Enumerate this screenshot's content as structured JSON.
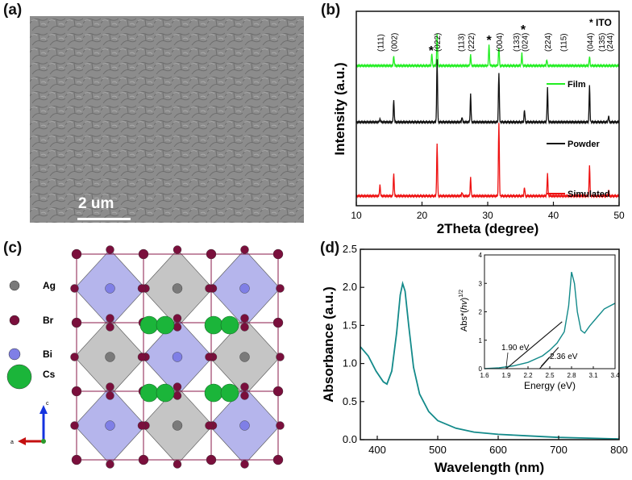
{
  "panel_labels": {
    "a": "(a)",
    "b": "(b)",
    "c": "(c)",
    "d": "(d)"
  },
  "sem": {
    "scale_label": "2 um"
  },
  "colors": {
    "film": "#22ee22",
    "powder": "#111111",
    "simulated": "#ee1111",
    "absorbance": "#138a8a"
  },
  "chart_data": [
    {
      "type": "line",
      "title": "",
      "xlabel": "2Theta (degree)",
      "ylabel": "Intensity (a.u.)",
      "xlim": [
        10,
        50
      ],
      "xticks": [
        10,
        20,
        30,
        40,
        50
      ],
      "legend_ito": "* ITO",
      "series": [
        {
          "name": "Film",
          "offset": 0.72,
          "scale": 0.16,
          "peaks": [
            [
              15.7,
              0.3
            ],
            [
              21.5,
              0.4
            ],
            [
              22.3,
              1.0
            ],
            [
              27.4,
              0.35
            ],
            [
              30.2,
              0.7
            ],
            [
              31.7,
              0.6
            ],
            [
              35.2,
              0.4
            ],
            [
              39.0,
              0.2
            ],
            [
              45.5,
              0.3
            ]
          ]
        },
        {
          "name": "Powder",
          "offset": 0.43,
          "scale": 0.32,
          "peaks": [
            [
              13.6,
              0.05
            ],
            [
              15.7,
              0.35
            ],
            [
              22.3,
              1.0
            ],
            [
              26.1,
              0.08
            ],
            [
              27.4,
              0.45
            ],
            [
              31.7,
              0.8
            ],
            [
              35.6,
              0.2
            ],
            [
              39.1,
              0.55
            ],
            [
              45.5,
              0.6
            ],
            [
              48.4,
              0.1
            ]
          ]
        },
        {
          "name": "Simulated",
          "offset": 0.05,
          "scale": 0.38,
          "peaks": [
            [
              13.6,
              0.15
            ],
            [
              15.7,
              0.3
            ],
            [
              22.3,
              0.7
            ],
            [
              26.1,
              0.05
            ],
            [
              27.4,
              0.25
            ],
            [
              31.7,
              1.0
            ],
            [
              35.6,
              0.12
            ],
            [
              39.1,
              0.3
            ],
            [
              45.5,
              0.42
            ],
            [
              48.4,
              0.08
            ]
          ]
        }
      ],
      "annotations": [
        {
          "text": "(111)",
          "x": 13.6
        },
        {
          "text": "(002)",
          "x": 15.7
        },
        {
          "text": "*",
          "x": 21.4
        },
        {
          "text": "(022)",
          "x": 22.3
        },
        {
          "text": "(113)",
          "x": 25.9
        },
        {
          "text": "(222)",
          "x": 27.4
        },
        {
          "text": "*",
          "x": 30.2
        },
        {
          "text": "(004)",
          "x": 31.7
        },
        {
          "text": "(133)",
          "x": 34.3
        },
        {
          "text": "*",
          "x": 35.4
        },
        {
          "text": "(024)",
          "x": 35.6
        },
        {
          "text": "(224)",
          "x": 39.1
        },
        {
          "text": "(115)",
          "x": 41.5
        },
        {
          "text": "(044)",
          "x": 45.5
        },
        {
          "text": "(135)",
          "x": 47.3
        },
        {
          "text": "(244)",
          "x": 48.5
        }
      ]
    },
    {
      "type": "line",
      "title": "",
      "xlabel": "Wavelength (nm)",
      "ylabel": "Absorbance (a.u.)",
      "xlim": [
        372,
        800
      ],
      "ylim": [
        0.0,
        2.5
      ],
      "xticks": [
        400,
        500,
        600,
        700,
        800
      ],
      "yticks": [
        "0.0",
        "0.5",
        "1.0",
        "1.5",
        "2.0",
        "2.5"
      ],
      "points": [
        [
          372,
          1.22
        ],
        [
          385,
          1.1
        ],
        [
          398,
          0.9
        ],
        [
          410,
          0.76
        ],
        [
          416,
          0.73
        ],
        [
          424,
          0.9
        ],
        [
          432,
          1.4
        ],
        [
          438,
          1.9
        ],
        [
          442,
          2.05
        ],
        [
          446,
          1.95
        ],
        [
          452,
          1.5
        ],
        [
          460,
          0.95
        ],
        [
          470,
          0.6
        ],
        [
          485,
          0.37
        ],
        [
          500,
          0.25
        ],
        [
          530,
          0.15
        ],
        [
          560,
          0.1
        ],
        [
          600,
          0.07
        ],
        [
          650,
          0.05
        ],
        [
          700,
          0.03
        ],
        [
          750,
          0.02
        ],
        [
          800,
          0.01
        ]
      ]
    },
    {
      "type": "line",
      "title": "",
      "xlabel": "Energy (eV)",
      "ylabel": "Abs*(hv)^1/2",
      "ylabel_main": "Abs*(",
      "ylabel_hv": "hv",
      "ylabel_close": ")",
      "ylabel_exp": "1/2",
      "xlim": [
        1.6,
        3.4
      ],
      "ylim": [
        0,
        4
      ],
      "xticks": [
        "1.6",
        "1.9",
        "2.2",
        "2.5",
        "2.8",
        "3.1",
        "3.4"
      ],
      "yticks": [
        "0",
        "1",
        "2",
        "3",
        "4"
      ],
      "points": [
        [
          1.6,
          0.0
        ],
        [
          1.8,
          0.03
        ],
        [
          2.0,
          0.1
        ],
        [
          2.2,
          0.22
        ],
        [
          2.4,
          0.45
        ],
        [
          2.5,
          0.65
        ],
        [
          2.6,
          0.9
        ],
        [
          2.7,
          1.3
        ],
        [
          2.76,
          2.2
        ],
        [
          2.8,
          3.4
        ],
        [
          2.84,
          3.0
        ],
        [
          2.88,
          2.0
        ],
        [
          2.93,
          1.35
        ],
        [
          2.98,
          1.25
        ],
        [
          3.05,
          1.5
        ],
        [
          3.15,
          1.8
        ],
        [
          3.25,
          2.1
        ],
        [
          3.4,
          2.3
        ]
      ],
      "tangents": [
        {
          "label": "1.90 eV",
          "from": [
            1.9,
            0.0
          ],
          "to": [
            2.67,
            1.65
          ]
        },
        {
          "label": "2.36 eV",
          "from": [
            2.36,
            0.0
          ],
          "to": [
            2.62,
            0.75
          ]
        }
      ]
    }
  ],
  "crystal": {
    "legend": [
      {
        "label": "Ag",
        "color": "#7a7a7a"
      },
      {
        "label": "Br",
        "color": "#7a0f3c"
      },
      {
        "label": "Bi",
        "color": "#7f7fe6"
      },
      {
        "label": "Cs",
        "color": "#1bb53a"
      }
    ],
    "axes": {
      "a": "a",
      "c": "c"
    }
  }
}
